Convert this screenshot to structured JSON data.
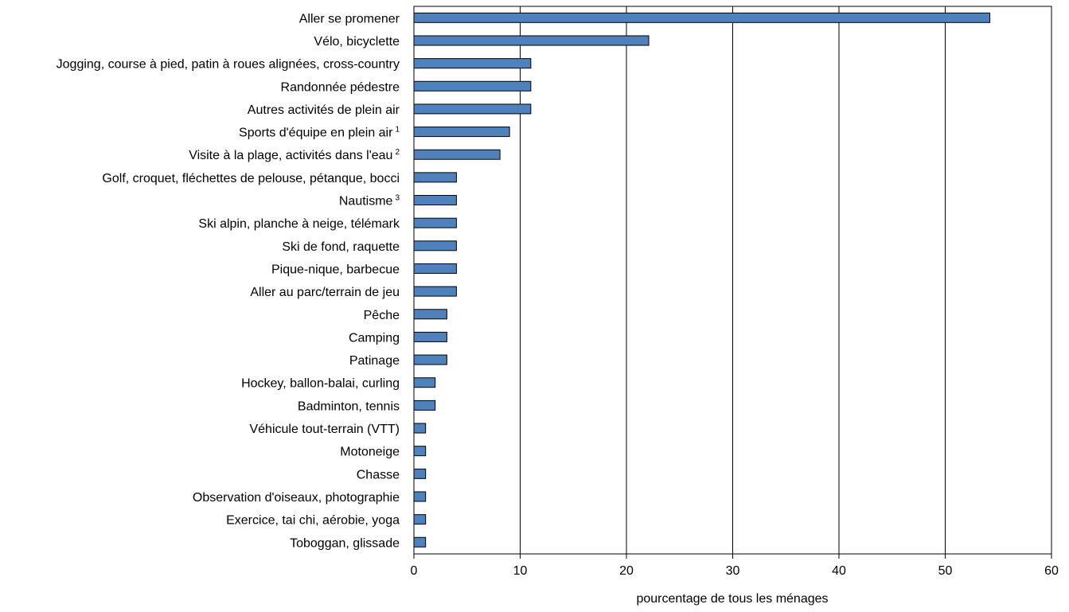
{
  "chart_data": {
    "type": "bar",
    "orientation": "horizontal",
    "title": "",
    "xlabel": "pourcentage de tous les ménages",
    "ylabel": "",
    "xlim": [
      0,
      60
    ],
    "xticks": [
      0,
      10,
      20,
      30,
      40,
      50,
      60
    ],
    "grid": true,
    "legend": "none",
    "bar_color": "#4F81BD",
    "categories": [
      {
        "label": "Aller se promener",
        "note": "",
        "value": 54.2
      },
      {
        "label": "Vélo, bicyclette",
        "note": "",
        "value": 22.1
      },
      {
        "label": "Jogging, course à pied, patin à roues alignées, cross-country",
        "note": "",
        "value": 11.0
      },
      {
        "label": "Randonnée pédestre",
        "note": "",
        "value": 11.0
      },
      {
        "label": "Autres activités de plein air",
        "note": "",
        "value": 11.0
      },
      {
        "label": "Sports d'équipe en plein air",
        "note": "1",
        "value": 9.0
      },
      {
        "label": "Visite à la plage, activités dans l'eau",
        "note": "2",
        "value": 8.1
      },
      {
        "label": "Golf, croquet, fléchettes de pelouse, pétanque, bocci",
        "note": "",
        "value": 4.0
      },
      {
        "label": "Nautisme",
        "note": "3",
        "value": 4.0
      },
      {
        "label": "Ski alpin, planche à neige, télémark",
        "note": "",
        "value": 4.0
      },
      {
        "label": "Ski de fond, raquette",
        "note": "",
        "value": 4.0
      },
      {
        "label": "Pique-nique, barbecue",
        "note": "",
        "value": 4.0
      },
      {
        "label": "Aller au parc/terrain de jeu",
        "note": "",
        "value": 4.0
      },
      {
        "label": "Pêche",
        "note": "",
        "value": 3.1
      },
      {
        "label": "Camping",
        "note": "",
        "value": 3.1
      },
      {
        "label": "Patinage",
        "note": "",
        "value": 3.1
      },
      {
        "label": "Hockey, ballon-balai, curling",
        "note": "",
        "value": 2.0
      },
      {
        "label": "Badminton, tennis",
        "note": "",
        "value": 2.0
      },
      {
        "label": "Véhicule tout-terrain (VTT)",
        "note": "",
        "value": 1.1
      },
      {
        "label": "Motoneige",
        "note": "",
        "value": 1.1
      },
      {
        "label": "Chasse",
        "note": "",
        "value": 1.1
      },
      {
        "label": "Observation d'oiseaux, photographie",
        "note": "",
        "value": 1.1
      },
      {
        "label": "Exercice, tai chi, aérobie, yoga",
        "note": "",
        "value": 1.1
      },
      {
        "label": "Toboggan, glissade",
        "note": "",
        "value": 1.1
      }
    ]
  }
}
